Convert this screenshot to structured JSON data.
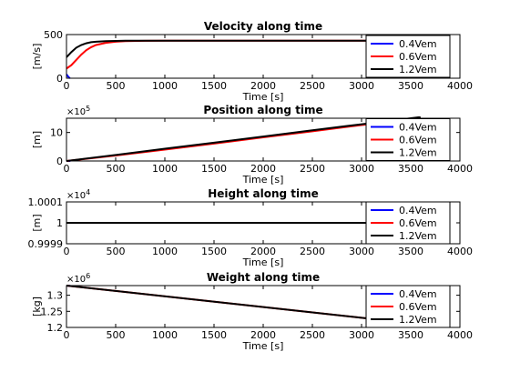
{
  "chart_data": [
    {
      "type": "line",
      "title": "Velocity along time",
      "xlabel": "Time [s]",
      "ylabel": "[m/s]",
      "xlim": [
        0,
        4000
      ],
      "ylim": [
        0,
        500
      ],
      "xticks": [
        0,
        500,
        1000,
        1500,
        2000,
        2500,
        3000,
        3500,
        4000
      ],
      "yticks": [
        0,
        500
      ],
      "ytick_labels": [
        "0",
        "500"
      ],
      "exponent_label": "",
      "legend": [
        "0.4Vem",
        "0.6Vem",
        "1.2Vem"
      ],
      "legend_position": "right",
      "series": [
        {
          "name": "0.4Vem",
          "color": "#0000ff",
          "x": [
            0,
            5,
            10,
            15,
            20,
            25,
            30,
            35
          ],
          "y": [
            45,
            38,
            30,
            22,
            15,
            9,
            4,
            0
          ]
        },
        {
          "name": "0.6Vem",
          "color": "#ff0000",
          "x": [
            0,
            50,
            100,
            150,
            200,
            250,
            300,
            400,
            500,
            600,
            800,
            1000,
            1500,
            2000,
            3000,
            3600
          ],
          "y": [
            110,
            150,
            210,
            270,
            320,
            355,
            380,
            405,
            418,
            424,
            428,
            430,
            430,
            430,
            430,
            430
          ]
        },
        {
          "name": "1.2Vem",
          "color": "#000000",
          "x": [
            0,
            50,
            100,
            150,
            200,
            250,
            300,
            400,
            500,
            600,
            800,
            1000,
            1500,
            2000,
            3000,
            3600
          ],
          "y": [
            240,
            300,
            350,
            380,
            400,
            412,
            418,
            424,
            427,
            429,
            430,
            430,
            430,
            430,
            430,
            430
          ]
        }
      ]
    },
    {
      "type": "line",
      "title": "Position along time",
      "xlabel": "Time [s]",
      "ylabel": "[m]",
      "xlim": [
        0,
        4000
      ],
      "ylim": [
        0,
        15
      ],
      "xticks": [
        0,
        500,
        1000,
        1500,
        2000,
        2500,
        3000,
        3500,
        4000
      ],
      "yticks": [
        0,
        10
      ],
      "ytick_labels": [
        "0",
        "10"
      ],
      "exponent_label": "×10^5",
      "exp_base": "×10",
      "exp_power": "5",
      "legend": [
        "0.4Vem",
        "0.6Vem",
        "1.2Vem"
      ],
      "legend_position": "right",
      "series": [
        {
          "name": "0.4Vem",
          "color": "#0000ff",
          "x": [
            0,
            40
          ],
          "y": [
            0,
            0
          ]
        },
        {
          "name": "0.6Vem",
          "color": "#ff0000",
          "x": [
            0,
            500,
            1000,
            1500,
            2000,
            2500,
            3000,
            3600
          ],
          "y": [
            0,
            1.9,
            4.0,
            6.1,
            8.3,
            10.4,
            12.6,
            15.1
          ]
        },
        {
          "name": "1.2Vem",
          "color": "#000000",
          "x": [
            0,
            500,
            1000,
            1500,
            2000,
            2500,
            3000,
            3600
          ],
          "y": [
            0,
            2.1,
            4.3,
            6.4,
            8.6,
            10.8,
            12.9,
            15.4
          ]
        }
      ]
    },
    {
      "type": "line",
      "title": "Height along time",
      "xlabel": "Time [s]",
      "ylabel": "[m]",
      "xlim": [
        0,
        4000
      ],
      "ylim": [
        0.9999,
        1.0001
      ],
      "xticks": [
        0,
        500,
        1000,
        1500,
        2000,
        2500,
        3000,
        3500,
        4000
      ],
      "yticks": [
        0.9999,
        1.0,
        1.0001
      ],
      "ytick_labels": [
        "0.9999",
        "1",
        "1.0001"
      ],
      "exponent_label": "×10^4",
      "exp_base": "×10",
      "exp_power": "4",
      "legend": [
        "0.4Vem",
        "0.6Vem",
        "1.2Vem"
      ],
      "legend_position": "right",
      "series": [
        {
          "name": "0.4Vem",
          "color": "#0000ff",
          "x": [
            0,
            40
          ],
          "y": [
            1.0,
            1.0
          ]
        },
        {
          "name": "0.6Vem",
          "color": "#ff0000",
          "x": [
            0,
            3600
          ],
          "y": [
            1.0,
            1.0
          ]
        },
        {
          "name": "1.2Vem",
          "color": "#000000",
          "x": [
            0,
            3600
          ],
          "y": [
            1.0,
            1.0
          ]
        }
      ]
    },
    {
      "type": "line",
      "title": "Weight along time",
      "xlabel": "Time [s]",
      "ylabel": "[kg]",
      "xlim": [
        0,
        4000
      ],
      "ylim": [
        1.2,
        1.33
      ],
      "xticks": [
        0,
        500,
        1000,
        1500,
        2000,
        2500,
        3000,
        3500,
        4000
      ],
      "yticks": [
        1.2,
        1.25,
        1.3
      ],
      "ytick_labels": [
        "1.2",
        "1.25",
        "1.3"
      ],
      "exponent_label": "×10^6",
      "exp_base": "×10",
      "exp_power": "6",
      "legend": [
        "0.4Vem",
        "0.6Vem",
        "1.2Vem"
      ],
      "legend_position": "right",
      "series": [
        {
          "name": "0.4Vem",
          "color": "#0000ff",
          "x": [
            0,
            40
          ],
          "y": [
            1.33,
            1.329
          ]
        },
        {
          "name": "0.6Vem",
          "color": "#ff0000",
          "x": [
            0,
            3600
          ],
          "y": [
            1.33,
            1.21
          ]
        },
        {
          "name": "1.2Vem",
          "color": "#000000",
          "x": [
            0,
            3600
          ],
          "y": [
            1.33,
            1.21
          ]
        }
      ]
    }
  ]
}
